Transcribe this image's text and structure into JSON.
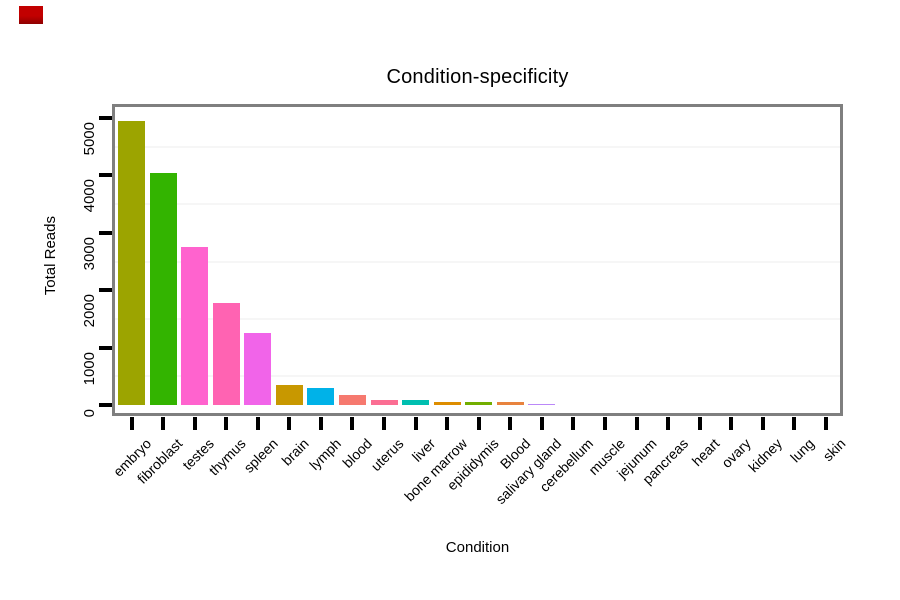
{
  "window": {
    "background": "#ffffff"
  },
  "red_marker": {
    "color_top": "#c20000",
    "color_bottom": "#8e0000"
  },
  "style": {
    "panel_border": "#7f7f7f",
    "tick_color": "#000000",
    "gridline_color": "#f6f6f6",
    "text_color": "#000000"
  },
  "chart_data": {
    "type": "bar",
    "title": "Condition-specificity",
    "xlabel": "Condition",
    "ylabel": "Total Reads",
    "ylim": [
      0,
      5190
    ],
    "grid": "faint horizontal minor gridlines only",
    "legend_position": "none",
    "ytick_values": [
      0,
      1000,
      2000,
      3000,
      4000,
      5000
    ],
    "ytick_labels": [
      "0",
      "1000",
      "2000",
      "3000",
      "4000",
      "5000"
    ],
    "minor_gridlines": [
      500,
      1500,
      2500,
      3500,
      4500
    ],
    "categories": [
      "embryo",
      "fibroblast",
      "testes",
      "thymus",
      "spleen",
      "brain",
      "lymph",
      "blood",
      "uterus",
      "liver",
      "bone marrow",
      "epididymis",
      "Blood",
      "salivary gland",
      "cerebellum",
      "muscle",
      "jejunum",
      "pancreas",
      "heart",
      "ovary",
      "kidney",
      "lung",
      "skin"
    ],
    "values": [
      4940,
      4040,
      2760,
      1780,
      1250,
      345,
      300,
      170,
      95,
      85,
      60,
      48,
      45,
      20,
      0,
      0,
      0,
      0,
      0,
      0,
      0,
      0,
      0
    ],
    "bar_colors": [
      "#9ca400",
      "#33b400",
      "#ff63ce",
      "#ff63b2",
      "#f164e9",
      "#c89800",
      "#00b2e8",
      "#f6796f",
      "#fb6e93",
      "#00bfb0",
      "#dd8d00",
      "#72ae00",
      "#e8833e",
      "#bb88f8",
      null,
      null,
      null,
      null,
      null,
      null,
      null,
      null,
      null
    ]
  }
}
